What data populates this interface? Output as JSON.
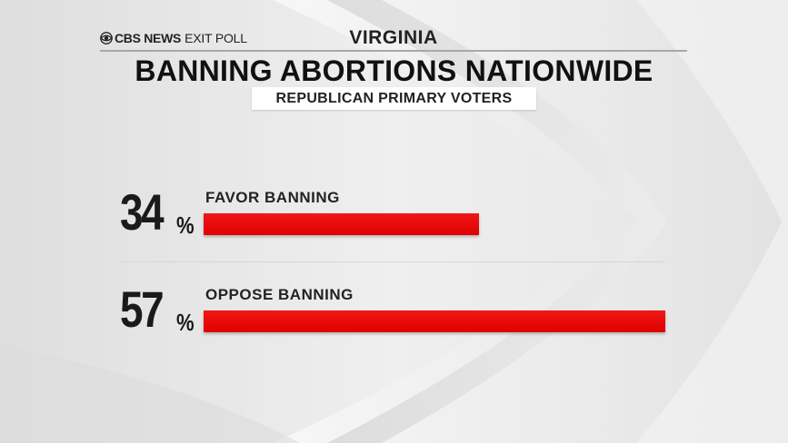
{
  "header": {
    "brand_bold": "CBS NEWS",
    "brand_light": "EXIT POLL",
    "brand_icon": "cbs-eye-icon",
    "state": "VIRGINIA"
  },
  "title": "BANNING ABORTIONS NATIONWIDE",
  "subtitle": "REPUBLICAN PRIMARY VOTERS",
  "colors": {
    "bar": "#e00000",
    "text": "#1a1a1a",
    "background": "#e9e9e9"
  },
  "chart_data": {
    "type": "bar",
    "orientation": "horizontal",
    "title": "BANNING ABORTIONS NATIONWIDE",
    "subtitle": "REPUBLICAN PRIMARY VOTERS",
    "categories": [
      "FAVOR BANNING",
      "OPPOSE BANNING"
    ],
    "values": [
      34,
      57
    ],
    "value_labels": [
      "34",
      "57"
    ],
    "unit": "%",
    "xlim": [
      0,
      57
    ],
    "grid": false,
    "legend": "none"
  }
}
